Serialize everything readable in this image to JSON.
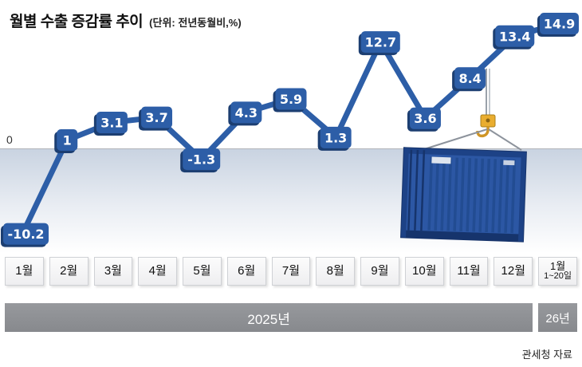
{
  "header": {
    "title": "월별 수출 증감률 추이",
    "unit": "(단위: 전년동월비,%)"
  },
  "chart_data": {
    "type": "line",
    "title": "월별 수출 증감률 추이",
    "unit_label": "(단위: 전년동월비,%)",
    "baseline": 0,
    "baseline_label": "0",
    "categories": [
      "1월",
      "2월",
      "3월",
      "4월",
      "5월",
      "6월",
      "7월",
      "8월",
      "9월",
      "10월",
      "11월",
      "12월",
      "1월"
    ],
    "last_category_sub": "1~20일",
    "values": [
      -10.2,
      1,
      3.1,
      3.7,
      -1.3,
      4.3,
      5.9,
      1.3,
      12.7,
      3.6,
      8.4,
      13.4,
      14.9
    ],
    "value_labels": [
      "-10.2",
      "1",
      "3.1",
      "3.7",
      "-1.3",
      "4.3",
      "5.9",
      "1.3",
      "12.7",
      "3.6",
      "8.4",
      "13.4",
      "14.9"
    ],
    "ylim": [
      -12,
      16
    ],
    "grid": false,
    "legend": "none",
    "colors": {
      "line": "#2d5ea7",
      "label_box": "#2d5ea7",
      "label_box_edge": "#1c3e71",
      "label_text": "#ffffff",
      "below_zero_band": "#c9d3e1",
      "year_bar": "#8f9195"
    }
  },
  "periods": {
    "year_main": "2025년",
    "year_sub": "26년"
  },
  "source": "관세청 자료"
}
